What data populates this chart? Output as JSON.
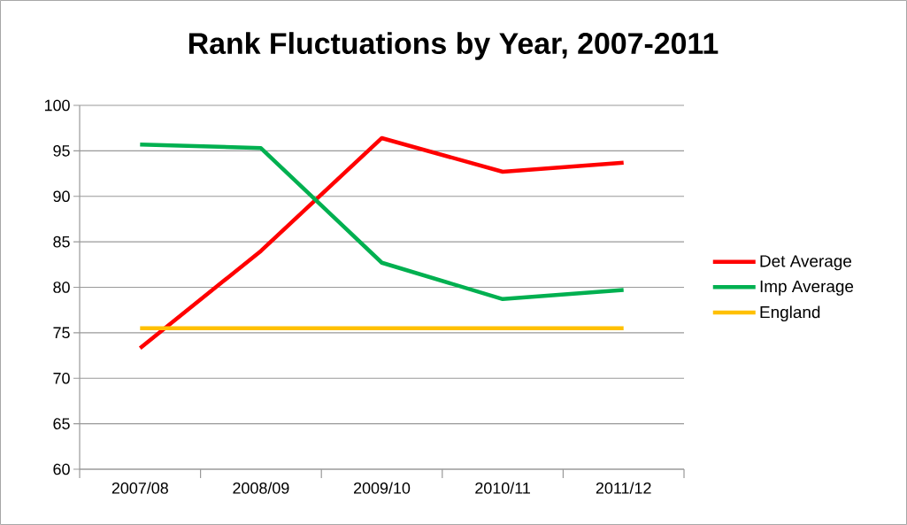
{
  "chart_data": {
    "type": "line",
    "title": "Rank Fluctuations by Year, 2007-2011",
    "categories": [
      "2007/08",
      "2008/09",
      "2009/10",
      "2010/11",
      "2011/12"
    ],
    "series": [
      {
        "name": "Det Average",
        "color": "#ff0000",
        "values": [
          73.3,
          84.0,
          96.4,
          92.7,
          93.7
        ]
      },
      {
        "name": "Imp Average",
        "color": "#00b050",
        "values": [
          95.7,
          95.3,
          82.7,
          78.7,
          79.7
        ]
      },
      {
        "name": "England",
        "color": "#ffc000",
        "values": [
          75.5,
          75.5,
          75.5,
          75.5,
          75.5
        ]
      }
    ],
    "ylim": [
      60,
      100
    ],
    "yticks": [
      60,
      65,
      70,
      75,
      80,
      85,
      90,
      95,
      100
    ],
    "grid": "y",
    "legend": "right",
    "marker": "none",
    "line_style": "solid"
  }
}
